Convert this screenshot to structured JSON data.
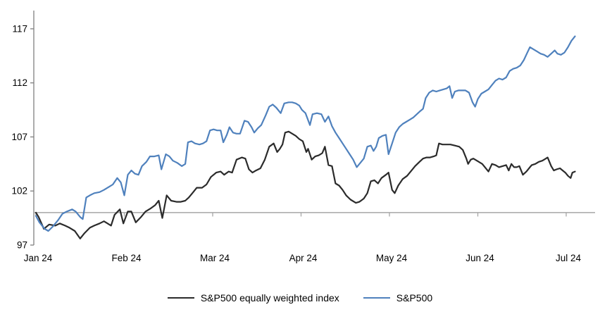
{
  "chart": {
    "title": "",
    "legend": [
      {
        "label": "S&P500 equally weighted index",
        "color": "#2b2b2b"
      },
      {
        "label": "S&P500",
        "color": "#4f81bd"
      }
    ],
    "colors": {
      "sp500_line": "#4f81bd",
      "equal_weight_line": "#2b2b2b",
      "axis_line": "#808080",
      "baseline": "#a6a6a6",
      "text": "#000000"
    },
    "y_axis": {
      "ticks": [
        97,
        102,
        107,
        112,
        117
      ],
      "min": 97,
      "max": 117.6
    },
    "x_axis": {
      "labels": [
        "Jan 24",
        "Feb 24",
        "Mar 24",
        "Apr 24",
        "May 24",
        "Jun 24",
        "Jul 24"
      ]
    },
    "baseline_value": 100
  },
  "chart_data": {
    "type": "line",
    "title": "",
    "xlabel": "",
    "ylabel": "",
    "x_unit": "months since 1 Jan 2024 (0 = Jan, 6 = Jul)",
    "ylim": [
      97,
      117.6
    ],
    "xlim": [
      0,
      6.15
    ],
    "grid": false,
    "legend_position": "bottom-center",
    "baseline": 100,
    "series": [
      {
        "name": "S&P500 equally weighted index",
        "color": "#2b2b2b",
        "points": [
          [
            0.0,
            100.0
          ],
          [
            0.03,
            99.6
          ],
          [
            0.09,
            98.5
          ],
          [
            0.15,
            98.9
          ],
          [
            0.22,
            98.8
          ],
          [
            0.27,
            99.0
          ],
          [
            0.33,
            98.8
          ],
          [
            0.38,
            98.6
          ],
          [
            0.44,
            98.3
          ],
          [
            0.5,
            97.6
          ],
          [
            0.55,
            98.1
          ],
          [
            0.61,
            98.6
          ],
          [
            0.66,
            98.8
          ],
          [
            0.72,
            99.0
          ],
          [
            0.77,
            99.2
          ],
          [
            0.81,
            99.0
          ],
          [
            0.85,
            98.8
          ],
          [
            0.89,
            99.8
          ],
          [
            0.95,
            100.3
          ],
          [
            0.99,
            99.0
          ],
          [
            1.04,
            100.1
          ],
          [
            1.08,
            100.1
          ],
          [
            1.13,
            99.1
          ],
          [
            1.19,
            99.6
          ],
          [
            1.24,
            100.1
          ],
          [
            1.3,
            100.4
          ],
          [
            1.35,
            100.7
          ],
          [
            1.39,
            101.1
          ],
          [
            1.43,
            99.5
          ],
          [
            1.48,
            101.6
          ],
          [
            1.53,
            101.1
          ],
          [
            1.59,
            101.0
          ],
          [
            1.64,
            101.0
          ],
          [
            1.69,
            101.1
          ],
          [
            1.73,
            101.4
          ],
          [
            1.78,
            101.9
          ],
          [
            1.82,
            102.3
          ],
          [
            1.88,
            102.3
          ],
          [
            1.93,
            102.6
          ],
          [
            1.98,
            103.3
          ],
          [
            2.04,
            103.7
          ],
          [
            2.09,
            103.8
          ],
          [
            2.13,
            103.5
          ],
          [
            2.18,
            103.8
          ],
          [
            2.22,
            103.7
          ],
          [
            2.27,
            104.9
          ],
          [
            2.33,
            105.1
          ],
          [
            2.37,
            105.0
          ],
          [
            2.41,
            104.0
          ],
          [
            2.45,
            103.7
          ],
          [
            2.49,
            103.9
          ],
          [
            2.54,
            104.1
          ],
          [
            2.59,
            104.9
          ],
          [
            2.64,
            106.1
          ],
          [
            2.69,
            106.4
          ],
          [
            2.73,
            105.6
          ],
          [
            2.76,
            105.9
          ],
          [
            2.79,
            106.3
          ],
          [
            2.82,
            107.4
          ],
          [
            2.86,
            107.5
          ],
          [
            2.9,
            107.3
          ],
          [
            2.94,
            107.1
          ],
          [
            2.98,
            106.8
          ],
          [
            3.02,
            106.6
          ],
          [
            3.06,
            105.6
          ],
          [
            3.08,
            105.9
          ],
          [
            3.12,
            104.9
          ],
          [
            3.16,
            105.2
          ],
          [
            3.2,
            105.3
          ],
          [
            3.24,
            105.5
          ],
          [
            3.27,
            106.1
          ],
          [
            3.31,
            104.4
          ],
          [
            3.35,
            104.3
          ],
          [
            3.39,
            102.7
          ],
          [
            3.43,
            102.5
          ],
          [
            3.47,
            102.1
          ],
          [
            3.51,
            101.6
          ],
          [
            3.56,
            101.2
          ],
          [
            3.62,
            100.9
          ],
          [
            3.66,
            101.0
          ],
          [
            3.71,
            101.3
          ],
          [
            3.75,
            101.8
          ],
          [
            3.79,
            102.9
          ],
          [
            3.83,
            103.0
          ],
          [
            3.87,
            102.7
          ],
          [
            3.91,
            103.2
          ],
          [
            3.96,
            103.5
          ],
          [
            3.99,
            103.7
          ],
          [
            4.03,
            102.1
          ],
          [
            4.06,
            101.8
          ],
          [
            4.1,
            102.5
          ],
          [
            4.15,
            103.1
          ],
          [
            4.2,
            103.4
          ],
          [
            4.25,
            103.9
          ],
          [
            4.29,
            104.3
          ],
          [
            4.34,
            104.7
          ],
          [
            4.38,
            105.0
          ],
          [
            4.42,
            105.1
          ],
          [
            4.46,
            105.1
          ],
          [
            4.5,
            105.2
          ],
          [
            4.53,
            105.3
          ],
          [
            4.56,
            106.4
          ],
          [
            4.6,
            106.3
          ],
          [
            4.65,
            106.3
          ],
          [
            4.69,
            106.3
          ],
          [
            4.74,
            106.2
          ],
          [
            4.79,
            106.1
          ],
          [
            4.83,
            105.8
          ],
          [
            4.87,
            105.0
          ],
          [
            4.89,
            104.5
          ],
          [
            4.92,
            104.9
          ],
          [
            4.95,
            105.0
          ],
          [
            4.99,
            104.8
          ],
          [
            5.05,
            104.5
          ],
          [
            5.12,
            103.8
          ],
          [
            5.16,
            104.5
          ],
          [
            5.2,
            104.4
          ],
          [
            5.24,
            104.2
          ],
          [
            5.28,
            104.3
          ],
          [
            5.32,
            104.4
          ],
          [
            5.35,
            103.9
          ],
          [
            5.38,
            104.5
          ],
          [
            5.41,
            104.2
          ],
          [
            5.44,
            104.2
          ],
          [
            5.47,
            104.3
          ],
          [
            5.51,
            103.5
          ],
          [
            5.55,
            103.8
          ],
          [
            5.59,
            104.2
          ],
          [
            5.61,
            104.4
          ],
          [
            5.65,
            104.5
          ],
          [
            5.69,
            104.7
          ],
          [
            5.73,
            104.8
          ],
          [
            5.77,
            105.0
          ],
          [
            5.79,
            105.1
          ],
          [
            5.83,
            104.3
          ],
          [
            5.86,
            103.9
          ],
          [
            5.89,
            104.0
          ],
          [
            5.93,
            104.1
          ],
          [
            5.96,
            103.9
          ],
          [
            5.99,
            103.7
          ],
          [
            6.02,
            103.4
          ],
          [
            6.05,
            103.2
          ],
          [
            6.07,
            103.7
          ],
          [
            6.1,
            103.8
          ]
        ]
      },
      {
        "name": "S&P500",
        "color": "#4f81bd",
        "points": [
          [
            0.0,
            99.7
          ],
          [
            0.04,
            99.1
          ],
          [
            0.1,
            98.5
          ],
          [
            0.14,
            98.3
          ],
          [
            0.19,
            98.7
          ],
          [
            0.25,
            99.3
          ],
          [
            0.3,
            99.9
          ],
          [
            0.35,
            100.1
          ],
          [
            0.41,
            100.3
          ],
          [
            0.45,
            100.1
          ],
          [
            0.5,
            99.6
          ],
          [
            0.53,
            99.4
          ],
          [
            0.57,
            101.4
          ],
          [
            0.61,
            101.6
          ],
          [
            0.66,
            101.8
          ],
          [
            0.72,
            101.9
          ],
          [
            0.77,
            102.1
          ],
          [
            0.83,
            102.4
          ],
          [
            0.87,
            102.6
          ],
          [
            0.92,
            103.2
          ],
          [
            0.96,
            102.8
          ],
          [
            1.0,
            101.6
          ],
          [
            1.04,
            103.5
          ],
          [
            1.08,
            103.9
          ],
          [
            1.12,
            103.6
          ],
          [
            1.16,
            103.5
          ],
          [
            1.2,
            104.3
          ],
          [
            1.25,
            104.7
          ],
          [
            1.29,
            105.2
          ],
          [
            1.34,
            105.2
          ],
          [
            1.39,
            105.3
          ],
          [
            1.42,
            104.0
          ],
          [
            1.47,
            105.4
          ],
          [
            1.51,
            105.2
          ],
          [
            1.55,
            104.8
          ],
          [
            1.6,
            104.6
          ],
          [
            1.65,
            104.3
          ],
          [
            1.69,
            104.5
          ],
          [
            1.72,
            106.5
          ],
          [
            1.76,
            106.6
          ],
          [
            1.8,
            106.4
          ],
          [
            1.85,
            106.3
          ],
          [
            1.89,
            106.4
          ],
          [
            1.93,
            106.6
          ],
          [
            1.97,
            107.6
          ],
          [
            2.01,
            107.7
          ],
          [
            2.05,
            107.6
          ],
          [
            2.09,
            107.6
          ],
          [
            2.12,
            106.5
          ],
          [
            2.16,
            107.2
          ],
          [
            2.19,
            107.9
          ],
          [
            2.23,
            107.4
          ],
          [
            2.27,
            107.3
          ],
          [
            2.31,
            107.3
          ],
          [
            2.36,
            108.5
          ],
          [
            2.4,
            108.4
          ],
          [
            2.44,
            107.9
          ],
          [
            2.47,
            107.4
          ],
          [
            2.51,
            107.8
          ],
          [
            2.55,
            108.1
          ],
          [
            2.6,
            109.0
          ],
          [
            2.64,
            109.8
          ],
          [
            2.68,
            110.0
          ],
          [
            2.72,
            109.7
          ],
          [
            2.77,
            109.2
          ],
          [
            2.81,
            110.1
          ],
          [
            2.86,
            110.2
          ],
          [
            2.9,
            110.2
          ],
          [
            2.94,
            110.1
          ],
          [
            2.98,
            109.9
          ],
          [
            3.01,
            109.5
          ],
          [
            3.05,
            109.2
          ],
          [
            3.1,
            108.1
          ],
          [
            3.13,
            109.1
          ],
          [
            3.18,
            109.2
          ],
          [
            3.23,
            109.1
          ],
          [
            3.27,
            108.4
          ],
          [
            3.31,
            108.9
          ],
          [
            3.35,
            108.0
          ],
          [
            3.39,
            107.4
          ],
          [
            3.43,
            106.9
          ],
          [
            3.47,
            106.4
          ],
          [
            3.51,
            105.9
          ],
          [
            3.55,
            105.4
          ],
          [
            3.59,
            104.9
          ],
          [
            3.63,
            104.2
          ],
          [
            3.67,
            104.6
          ],
          [
            3.71,
            105.0
          ],
          [
            3.75,
            106.1
          ],
          [
            3.79,
            106.2
          ],
          [
            3.82,
            105.7
          ],
          [
            3.85,
            106.1
          ],
          [
            3.88,
            106.9
          ],
          [
            3.92,
            107.1
          ],
          [
            3.96,
            107.2
          ],
          [
            3.99,
            105.4
          ],
          [
            4.03,
            106.4
          ],
          [
            4.07,
            107.4
          ],
          [
            4.11,
            107.9
          ],
          [
            4.15,
            108.2
          ],
          [
            4.19,
            108.4
          ],
          [
            4.23,
            108.6
          ],
          [
            4.27,
            108.8
          ],
          [
            4.31,
            109.1
          ],
          [
            4.35,
            109.4
          ],
          [
            4.38,
            109.6
          ],
          [
            4.41,
            110.6
          ],
          [
            4.45,
            111.1
          ],
          [
            4.49,
            111.3
          ],
          [
            4.53,
            111.2
          ],
          [
            4.57,
            111.3
          ],
          [
            4.61,
            111.4
          ],
          [
            4.65,
            111.5
          ],
          [
            4.68,
            111.7
          ],
          [
            4.71,
            110.6
          ],
          [
            4.74,
            111.2
          ],
          [
            4.78,
            111.3
          ],
          [
            4.82,
            111.3
          ],
          [
            4.86,
            111.3
          ],
          [
            4.9,
            111.1
          ],
          [
            4.94,
            110.2
          ],
          [
            4.97,
            109.8
          ],
          [
            5.0,
            110.5
          ],
          [
            5.04,
            111.0
          ],
          [
            5.08,
            111.2
          ],
          [
            5.12,
            111.4
          ],
          [
            5.16,
            111.8
          ],
          [
            5.2,
            112.2
          ],
          [
            5.24,
            112.4
          ],
          [
            5.28,
            112.3
          ],
          [
            5.32,
            112.5
          ],
          [
            5.36,
            113.1
          ],
          [
            5.4,
            113.3
          ],
          [
            5.44,
            113.4
          ],
          [
            5.48,
            113.6
          ],
          [
            5.52,
            114.1
          ],
          [
            5.56,
            114.8
          ],
          [
            5.59,
            115.3
          ],
          [
            5.63,
            115.1
          ],
          [
            5.67,
            114.9
          ],
          [
            5.71,
            114.7
          ],
          [
            5.75,
            114.6
          ],
          [
            5.79,
            114.4
          ],
          [
            5.83,
            114.7
          ],
          [
            5.87,
            115.0
          ],
          [
            5.9,
            114.7
          ],
          [
            5.94,
            114.6
          ],
          [
            5.98,
            114.8
          ],
          [
            6.02,
            115.3
          ],
          [
            6.06,
            115.9
          ],
          [
            6.1,
            116.3
          ]
        ]
      }
    ]
  }
}
